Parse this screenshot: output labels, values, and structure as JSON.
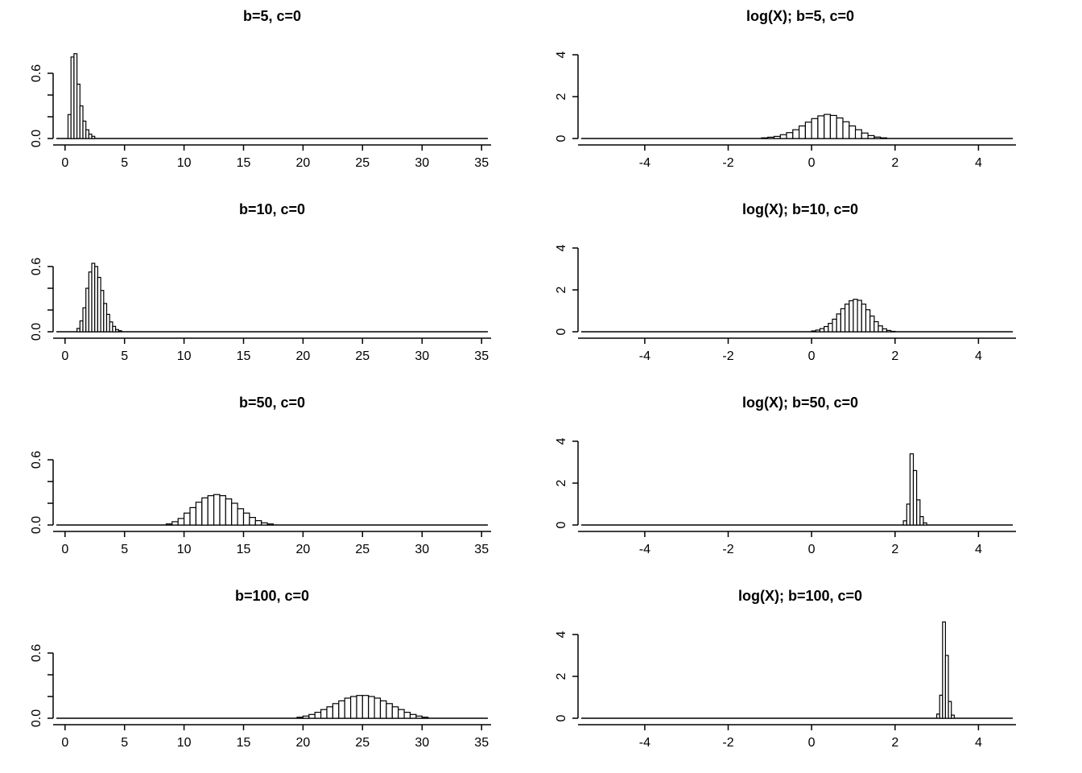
{
  "figure": {
    "background": "#ffffff",
    "ink": "#000000"
  },
  "chart_data": [
    {
      "type": "histogram",
      "title": "b=5, c=0",
      "xlabel": "",
      "ylabel": "",
      "side": "left",
      "x_range": [
        -1,
        35.8
      ],
      "ylim": [
        0,
        0.8
      ],
      "x_ticks": [
        0,
        5,
        10,
        15,
        20,
        25,
        30,
        35
      ],
      "x_tick_labels": [
        "0",
        "5",
        "10",
        "15",
        "20",
        "25",
        "30",
        "35"
      ],
      "y_ticks": [
        0,
        0.2,
        0.4,
        0.6
      ],
      "y_tick_labels": [
        "0.0",
        "",
        "",
        "0.6"
      ],
      "bin_start": 0.25,
      "bin_width": 0.25,
      "heights": [
        0.22,
        0.75,
        0.78,
        0.5,
        0.3,
        0.16,
        0.08,
        0.04,
        0.02
      ]
    },
    {
      "type": "histogram",
      "title": "log(X); b=5, c=0",
      "xlabel": "",
      "ylabel": "",
      "side": "right",
      "x_range": [
        -5.6,
        4.9
      ],
      "ylim": [
        0,
        5
      ],
      "x_ticks": [
        -4,
        -2,
        0,
        2,
        4
      ],
      "x_tick_labels": [
        "-4",
        "-2",
        "0",
        "2",
        "4"
      ],
      "y_ticks": [
        0,
        2,
        4
      ],
      "y_tick_labels": [
        "0",
        "2",
        "4"
      ],
      "bin_start": -1.2,
      "bin_width": 0.15,
      "heights": [
        0.03,
        0.06,
        0.1,
        0.18,
        0.28,
        0.42,
        0.6,
        0.78,
        0.95,
        1.08,
        1.15,
        1.1,
        0.98,
        0.8,
        0.6,
        0.42,
        0.26,
        0.14,
        0.07,
        0.03
      ]
    },
    {
      "type": "histogram",
      "title": "b=10, c=0",
      "xlabel": "",
      "ylabel": "",
      "side": "left",
      "x_range": [
        -1,
        35.8
      ],
      "ylim": [
        0,
        0.8
      ],
      "x_ticks": [
        0,
        5,
        10,
        15,
        20,
        25,
        30,
        35
      ],
      "x_tick_labels": [
        "0",
        "5",
        "10",
        "15",
        "20",
        "25",
        "30",
        "35"
      ],
      "y_ticks": [
        0,
        0.2,
        0.4,
        0.6
      ],
      "y_tick_labels": [
        "0.0",
        "",
        "",
        "0.6"
      ],
      "bin_start": 1.0,
      "bin_width": 0.25,
      "heights": [
        0.03,
        0.1,
        0.22,
        0.4,
        0.55,
        0.63,
        0.6,
        0.5,
        0.38,
        0.26,
        0.16,
        0.09,
        0.05,
        0.02,
        0.01
      ]
    },
    {
      "type": "histogram",
      "title": "log(X); b=10, c=0",
      "xlabel": "",
      "ylabel": "",
      "side": "right",
      "x_range": [
        -5.6,
        4.9
      ],
      "ylim": [
        0,
        5
      ],
      "x_ticks": [
        -4,
        -2,
        0,
        2,
        4
      ],
      "x_tick_labels": [
        "-4",
        "-2",
        "0",
        "2",
        "4"
      ],
      "y_ticks": [
        0,
        2,
        4
      ],
      "y_tick_labels": [
        "0",
        "2",
        "4"
      ],
      "bin_start": 0.0,
      "bin_width": 0.1,
      "heights": [
        0.04,
        0.08,
        0.15,
        0.25,
        0.4,
        0.6,
        0.85,
        1.1,
        1.32,
        1.48,
        1.55,
        1.5,
        1.32,
        1.05,
        0.75,
        0.48,
        0.28,
        0.14,
        0.06,
        0.02
      ]
    },
    {
      "type": "histogram",
      "title": "b=50, c=0",
      "xlabel": "",
      "ylabel": "",
      "side": "left",
      "x_range": [
        -1,
        35.8
      ],
      "ylim": [
        0,
        0.8
      ],
      "x_ticks": [
        0,
        5,
        10,
        15,
        20,
        25,
        30,
        35
      ],
      "x_tick_labels": [
        "0",
        "5",
        "10",
        "15",
        "20",
        "25",
        "30",
        "35"
      ],
      "y_ticks": [
        0,
        0.2,
        0.4,
        0.6
      ],
      "y_tick_labels": [
        "0.0",
        "",
        "",
        "0.6"
      ],
      "bin_start": 8.5,
      "bin_width": 0.5,
      "heights": [
        0.01,
        0.03,
        0.06,
        0.11,
        0.16,
        0.21,
        0.25,
        0.27,
        0.28,
        0.27,
        0.24,
        0.2,
        0.15,
        0.11,
        0.07,
        0.04,
        0.02,
        0.01
      ]
    },
    {
      "type": "histogram",
      "title": "log(X); b=50, c=0",
      "xlabel": "",
      "ylabel": "",
      "side": "right",
      "x_range": [
        -5.6,
        4.9
      ],
      "ylim": [
        0,
        5
      ],
      "x_ticks": [
        -4,
        -2,
        0,
        2,
        4
      ],
      "x_tick_labels": [
        "-4",
        "-2",
        "0",
        "2",
        "4"
      ],
      "y_ticks": [
        0,
        2,
        4
      ],
      "y_tick_labels": [
        "0",
        "2",
        "4"
      ],
      "bin_start": 2.2,
      "bin_width": 0.08,
      "heights": [
        0.2,
        1.0,
        3.4,
        2.6,
        1.2,
        0.4,
        0.1
      ]
    },
    {
      "type": "histogram",
      "title": "b=100, c=0",
      "xlabel": "",
      "ylabel": "",
      "side": "left",
      "x_range": [
        -1,
        35.8
      ],
      "ylim": [
        0,
        0.8
      ],
      "x_ticks": [
        0,
        5,
        10,
        15,
        20,
        25,
        30,
        35
      ],
      "x_tick_labels": [
        "0",
        "5",
        "10",
        "15",
        "20",
        "25",
        "30",
        "35"
      ],
      "y_ticks": [
        0,
        0.2,
        0.4,
        0.6
      ],
      "y_tick_labels": [
        "0.0",
        "",
        "",
        "0.6"
      ],
      "bin_start": 19.5,
      "bin_width": 0.5,
      "heights": [
        0.01,
        0.02,
        0.035,
        0.055,
        0.08,
        0.105,
        0.135,
        0.16,
        0.185,
        0.2,
        0.21,
        0.21,
        0.2,
        0.185,
        0.16,
        0.135,
        0.105,
        0.08,
        0.055,
        0.035,
        0.02,
        0.01
      ]
    },
    {
      "type": "histogram",
      "title": "log(X); b=100, c=0",
      "xlabel": "",
      "ylabel": "",
      "side": "right",
      "x_range": [
        -5.6,
        4.9
      ],
      "ylim": [
        0,
        5
      ],
      "x_ticks": [
        -4,
        -2,
        0,
        2,
        4
      ],
      "x_tick_labels": [
        "-4",
        "-2",
        "0",
        "2",
        "4"
      ],
      "y_ticks": [
        0,
        2,
        4
      ],
      "y_tick_labels": [
        "0",
        "2",
        "4"
      ],
      "bin_start": 3.0,
      "bin_width": 0.07,
      "heights": [
        0.2,
        1.1,
        4.6,
        3.0,
        0.8,
        0.15
      ]
    }
  ]
}
